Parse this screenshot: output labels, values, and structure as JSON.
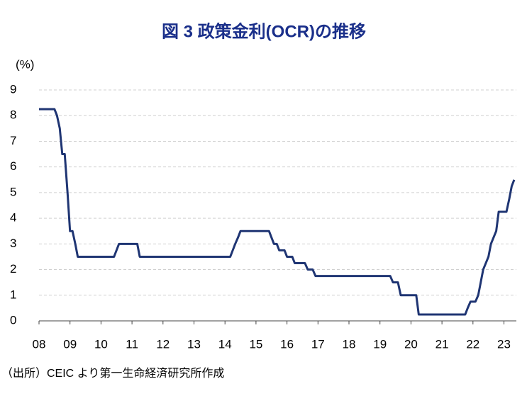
{
  "chart_data": {
    "type": "line",
    "title": "図 3  政策金利(OCR)の推移",
    "y_label": "(%)",
    "source": "（出所）CEIC より第一生命経済研究所作成",
    "xlim": [
      2008,
      2023.4
    ],
    "ylim": [
      0,
      9
    ],
    "xticks": [
      {
        "value": 2008,
        "label": "08"
      },
      {
        "value": 2009,
        "label": "09"
      },
      {
        "value": 2010,
        "label": "10"
      },
      {
        "value": 2011,
        "label": "11"
      },
      {
        "value": 2012,
        "label": "12"
      },
      {
        "value": 2013,
        "label": "13"
      },
      {
        "value": 2014,
        "label": "14"
      },
      {
        "value": 2015,
        "label": "15"
      },
      {
        "value": 2016,
        "label": "16"
      },
      {
        "value": 2017,
        "label": "17"
      },
      {
        "value": 2018,
        "label": "18"
      },
      {
        "value": 2019,
        "label": "19"
      },
      {
        "value": 2020,
        "label": "20"
      },
      {
        "value": 2021,
        "label": "21"
      },
      {
        "value": 2022,
        "label": "22"
      },
      {
        "value": 2023,
        "label": "23"
      }
    ],
    "yticks": [
      0,
      1,
      2,
      3,
      4,
      5,
      6,
      7,
      8,
      9
    ],
    "grid": true,
    "x": [
      2008.0,
      2008.5,
      2008.58,
      2008.67,
      2008.75,
      2008.83,
      2008.92,
      2009.0,
      2009.08,
      2009.17,
      2009.25,
      2010.42,
      2010.5,
      2010.58,
      2011.17,
      2011.25,
      2014.17,
      2014.25,
      2014.33,
      2014.42,
      2014.5,
      2015.42,
      2015.5,
      2015.58,
      2015.67,
      2015.75,
      2015.92,
      2016.0,
      2016.17,
      2016.25,
      2016.58,
      2016.67,
      2016.83,
      2016.92,
      2019.33,
      2019.42,
      2019.58,
      2019.67,
      2020.17,
      2020.25,
      2021.75,
      2021.83,
      2021.92,
      2022.08,
      2022.17,
      2022.25,
      2022.33,
      2022.5,
      2022.58,
      2022.75,
      2022.83,
      2023.08,
      2023.17,
      2023.25,
      2023.33
    ],
    "series": [
      {
        "color": "#1f3573",
        "values": [
          8.25,
          8.25,
          8.0,
          7.5,
          6.5,
          6.5,
          5.0,
          3.5,
          3.5,
          3.0,
          2.5,
          2.5,
          2.75,
          3.0,
          3.0,
          2.5,
          2.5,
          2.75,
          3.0,
          3.25,
          3.5,
          3.5,
          3.25,
          3.0,
          3.0,
          2.75,
          2.75,
          2.5,
          2.5,
          2.25,
          2.25,
          2.0,
          2.0,
          1.75,
          1.75,
          1.5,
          1.5,
          1.0,
          1.0,
          0.25,
          0.25,
          0.5,
          0.75,
          0.75,
          1.0,
          1.5,
          2.0,
          2.5,
          3.0,
          3.5,
          4.25,
          4.25,
          4.75,
          5.25,
          5.5
        ]
      }
    ]
  }
}
